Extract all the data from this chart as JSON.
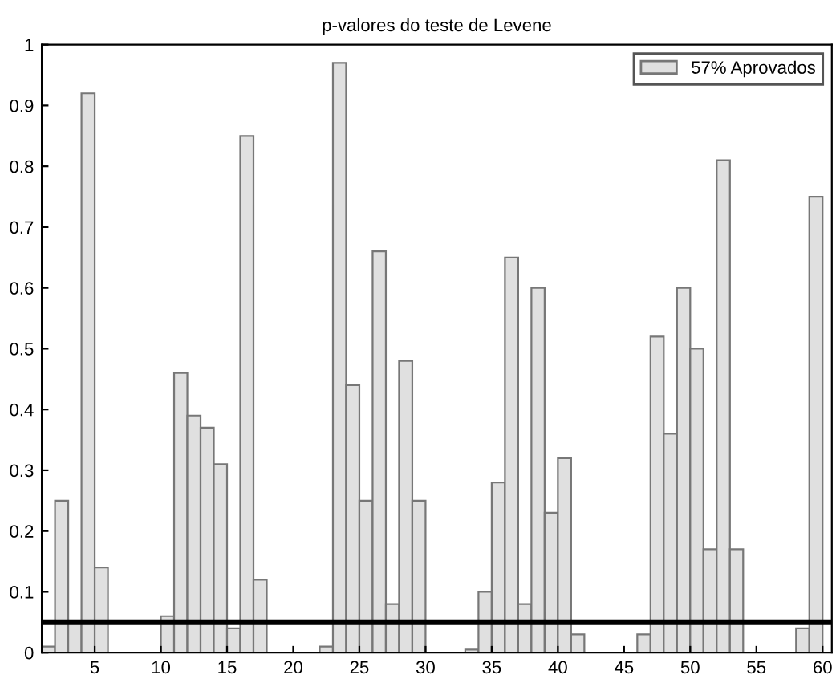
{
  "chart_data": {
    "type": "bar",
    "title": "p-valores do teste de Levene",
    "x": [
      1.5,
      2.5,
      3.5,
      4.5,
      5.5,
      6.5,
      7.5,
      8.5,
      9.5,
      10.5,
      11.5,
      12.5,
      13.5,
      14.5,
      15.5,
      16.5,
      17.5,
      18.5,
      19.5,
      20.5,
      21.5,
      22.5,
      23.5,
      24.5,
      25.5,
      26.5,
      27.5,
      28.5,
      29.5,
      30.5,
      31.5,
      32.5,
      33.5,
      34.5,
      35.5,
      36.5,
      37.5,
      38.5,
      39.5,
      40.5,
      41.5,
      42.5,
      43.5,
      44.5,
      45.5,
      46.5,
      47.5,
      48.5,
      49.5,
      50.5,
      51.5,
      52.5,
      53.5,
      54.5,
      55.5,
      56.5,
      57.5,
      58.5,
      59.5
    ],
    "series": [
      {
        "name": "57% Aprovados",
        "color": "#e0e0e0",
        "values": [
          0.01,
          0.25,
          0.05,
          0.92,
          0.14,
          0,
          0,
          0,
          0,
          0.06,
          0.46,
          0.39,
          0.37,
          0.31,
          0.04,
          0.85,
          0.12,
          0,
          0,
          0,
          0,
          0.01,
          0.97,
          0.44,
          0.25,
          0.66,
          0.08,
          0.48,
          0.25,
          0,
          0,
          0,
          0.005,
          0.1,
          0.28,
          0.65,
          0.08,
          0.6,
          0.23,
          0.32,
          0.03,
          0,
          0,
          0,
          0,
          0.03,
          0.52,
          0.36,
          0.6,
          0.5,
          0.17,
          0.81,
          0.17,
          0,
          0,
          0,
          0,
          0.04,
          0.75
        ]
      }
    ],
    "xlim": [
      1,
      60.7
    ],
    "xticks": [
      5,
      10,
      15,
      20,
      25,
      30,
      35,
      40,
      45,
      50,
      55,
      60
    ],
    "ylim": [
      0,
      1
    ],
    "yticks": [
      0,
      0.1,
      0.2,
      0.3,
      0.4,
      0.5,
      0.6,
      0.7,
      0.8,
      0.9,
      1
    ],
    "ref_lines": [
      {
        "axis": "y",
        "value": 0.05,
        "color": "#000000"
      }
    ],
    "legend": "top right",
    "grid": false
  }
}
